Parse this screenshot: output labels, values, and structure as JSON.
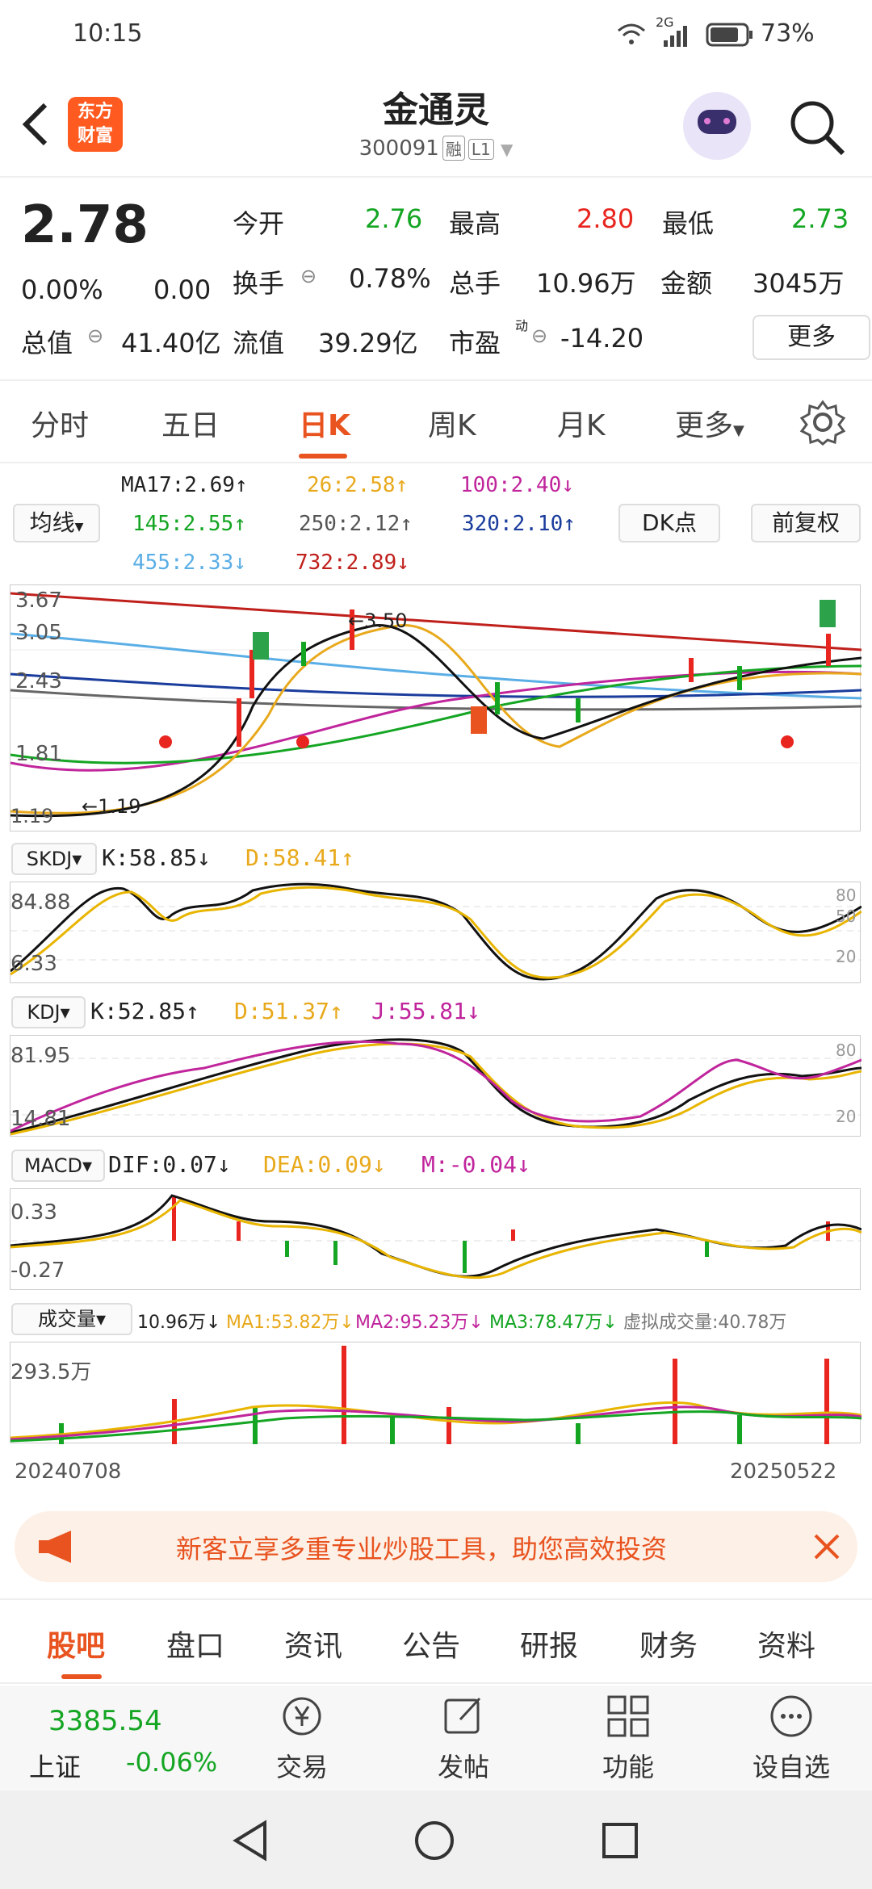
{
  "status_bar": {
    "time": "10:15",
    "network": "2G",
    "battery": "73%"
  },
  "header": {
    "logo_line1": "东方",
    "logo_line2": "财富",
    "stock_name": "金通灵",
    "stock_code": "300091",
    "tag_margin": "融",
    "tag_level": "L1"
  },
  "quote": {
    "price": "2.78",
    "change_pct": "0.00%",
    "change_amt": "0.00",
    "open_label": "今开",
    "open": "2.76",
    "high_label": "最高",
    "high": "2.80",
    "low_label": "最低",
    "low": "2.73",
    "turnover_label": "换手",
    "turnover": "0.78%",
    "volume_label": "总手",
    "volume": "10.96万",
    "amount_label": "金额",
    "amount": "3045万",
    "total_cap_label": "总值",
    "total_cap": "41.40亿",
    "float_cap_label": "流值",
    "float_cap": "39.29亿",
    "pe_label": "市盈",
    "pe_sup": "动",
    "pe": "-14.20",
    "more": "更多"
  },
  "period_tabs": [
    "分时",
    "五日",
    "日K",
    "周K",
    "月K",
    "更多"
  ],
  "ma_selector": "均线",
  "ma": {
    "ma17": "MA17:2.69↑",
    "ma26": "26:2.58↑",
    "ma100": "100:2.40↓",
    "ma145": "145:2.55↑",
    "ma250": "250:2.12↑",
    "ma320": "320:2.10↑",
    "ma455": "455:2.33↓",
    "ma732": "732:2.89↓"
  },
  "dk_button": "DK点",
  "fq_button": "前复权",
  "kline": {
    "y_labels": [
      "3.67",
      "3.05",
      "2.43",
      "1.81",
      "1.19"
    ],
    "peak_label": "3.50",
    "low_label": "1.19"
  },
  "skdj": {
    "name": "SKDJ",
    "k": "K:58.85↓",
    "d": "D:58.41↑",
    "top": "84.88",
    "bottom": "6.33",
    "r80": "80",
    "r50": "50",
    "r20": "20"
  },
  "kdj": {
    "name": "KDJ",
    "k": "K:52.85↑",
    "d": "D:51.37↑",
    "j": "J:55.81↓",
    "top": "81.95",
    "bottom": "14.81",
    "r80": "80",
    "r20": "20"
  },
  "macd": {
    "name": "MACD",
    "dif": "DIF:0.07↓",
    "dea": "DEA:0.09↓",
    "m": "M:-0.04↓",
    "top": "0.33",
    "bottom": "-0.27"
  },
  "vol": {
    "name": "成交量",
    "v": "10.96万↓",
    "ma1": "MA1:53.82万↓",
    "ma2": "MA2:95.23万↓",
    "ma3": "MA3:78.47万↓",
    "virtual": "虚拟成交量:40.78万",
    "top": "293.5万"
  },
  "dates": {
    "start": "20240708",
    "end": "20250522"
  },
  "banner": {
    "text": "新客立享多重专业炒股工具，助您高效投资"
  },
  "bottom_tabs": [
    "股吧",
    "盘口",
    "资讯",
    "公告",
    "研报",
    "财务",
    "资料"
  ],
  "index": {
    "value": "3385.54",
    "name": "上证",
    "change": "-0.06%"
  },
  "toolbar": [
    "交易",
    "发帖",
    "功能",
    "设自选"
  ],
  "colors": {
    "accent": "#e8531f",
    "up": "#e8251f",
    "down": "#14a523"
  }
}
